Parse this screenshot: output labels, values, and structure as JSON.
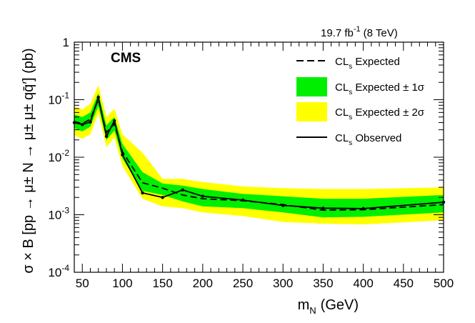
{
  "chart_data": {
    "type": "line",
    "title": "",
    "experiment": "CMS",
    "luminosity": "19.7 fb",
    "luminosity_exponent": "-1",
    "energy": "(8 TeV)",
    "xlabel_main": "m",
    "xlabel_sub": "N",
    "xlabel_unit": "(GeV)",
    "ylabel": "σ × B [pp → μ± N → μ± μ± qq̄′] (pb)",
    "xlim": [
      40,
      500
    ],
    "ylim": [
      0.0001,
      1
    ],
    "yscale": "log",
    "x_ticks": [
      50,
      100,
      150,
      200,
      250,
      300,
      350,
      400,
      450,
      500
    ],
    "x_tick_labels": [
      "50",
      "100",
      "150",
      "200",
      "250",
      "300",
      "350",
      "400",
      "450",
      "500"
    ],
    "y_ticks": [
      0.0001,
      0.001,
      0.01,
      0.1,
      1
    ],
    "y_tick_labels": [
      {
        "base": "10",
        "exp": "-4"
      },
      {
        "base": "10",
        "exp": "-3"
      },
      {
        "base": "10",
        "exp": "-2"
      },
      {
        "base": "10",
        "exp": "-1"
      },
      {
        "base": "1",
        "exp": ""
      }
    ],
    "legend_position": "top-right",
    "legend": [
      {
        "key": "expected",
        "prefix": "CL",
        "sub": "s",
        "text": " Expected",
        "style": "dashed",
        "color": "#000000"
      },
      {
        "key": "band1",
        "prefix": "CL",
        "sub": "s",
        "text": " Expected  ± 1σ",
        "style": "fill",
        "color": "#00ee00"
      },
      {
        "key": "band2",
        "prefix": "CL",
        "sub": "s",
        "text": " Expected  ± 2σ",
        "style": "fill",
        "color": "#ffff00"
      },
      {
        "key": "observed",
        "prefix": "CL",
        "sub": "s",
        "text": " Observed",
        "style": "solid",
        "color": "#000000"
      }
    ],
    "x": [
      40,
      50,
      60,
      70,
      80,
      90,
      100,
      125,
      150,
      175,
      200,
      250,
      300,
      350,
      400,
      500
    ],
    "series": [
      {
        "name": "CLs Observed",
        "values": [
          0.04,
          0.037,
          0.041,
          0.11,
          0.023,
          0.043,
          0.011,
          0.0024,
          0.002,
          0.0027,
          0.0021,
          0.0018,
          0.00145,
          0.0013,
          0.00128,
          0.00165
        ]
      },
      {
        "name": "CLs Expected",
        "values": [
          0.042,
          0.038,
          0.046,
          0.1,
          0.027,
          0.038,
          0.0125,
          0.0036,
          0.0029,
          0.0022,
          0.0019,
          0.00175,
          0.0015,
          0.0012,
          0.00122,
          0.0015
        ]
      },
      {
        "name": "Expected +1σ",
        "values": [
          0.055,
          0.05,
          0.06,
          0.13,
          0.036,
          0.05,
          0.017,
          0.0055,
          0.0035,
          0.0032,
          0.0028,
          0.0023,
          0.0021,
          0.0019,
          0.0019,
          0.0022
        ]
      },
      {
        "name": "Expected -1σ",
        "values": [
          0.032,
          0.028,
          0.034,
          0.077,
          0.02,
          0.029,
          0.0095,
          0.0026,
          0.0022,
          0.0017,
          0.0014,
          0.0013,
          0.0011,
          0.0009,
          0.00092,
          0.0011
        ]
      },
      {
        "name": "Expected +2σ",
        "values": [
          0.075,
          0.068,
          0.085,
          0.18,
          0.05,
          0.07,
          0.025,
          0.012,
          0.0042,
          0.0042,
          0.0037,
          0.0031,
          0.0029,
          0.0028,
          0.0028,
          0.003
        ]
      },
      {
        "name": "Expected -2σ",
        "values": [
          0.024,
          0.021,
          0.025,
          0.058,
          0.015,
          0.022,
          0.007,
          0.0019,
          0.0014,
          0.0013,
          0.0011,
          0.00095,
          0.00075,
          0.0007,
          0.00068,
          0.0008
        ]
      }
    ],
    "colors": {
      "band1": "#00ee00",
      "band2": "#ffff00",
      "line": "#000000"
    }
  }
}
